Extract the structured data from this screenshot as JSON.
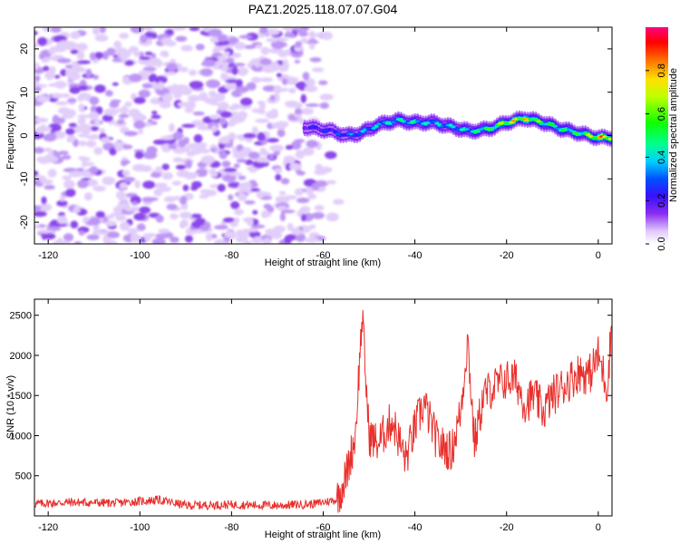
{
  "title": "PAZ1.2025.118.07.07.G04",
  "colors": {
    "snr_line": "#e8302c",
    "axis": "#000000"
  },
  "chart_data": [
    {
      "type": "heatmap",
      "xlabel": "Height of straight line (km)",
      "ylabel": "Frequency (Hz)",
      "xlim": [
        -123,
        3
      ],
      "ylim": [
        -25,
        25
      ],
      "xticks": [
        -120,
        -100,
        -80,
        -60,
        -40,
        -20,
        0
      ],
      "yticks": [
        -20,
        -10,
        0,
        10,
        20
      ],
      "colorbar": {
        "label": "Normalized spectral amplitude",
        "range": [
          0,
          1
        ],
        "ticks": [
          0.0,
          0.2,
          0.4,
          0.6,
          0.8
        ],
        "colormap": "rainbow"
      },
      "noise_region": {
        "x": [
          -123,
          -56
        ],
        "y": [
          -25,
          25
        ],
        "amplitude": 0.1
      },
      "signal_track": {
        "x": [
          -64,
          -58,
          -55,
          -52,
          -48,
          -44,
          -40,
          -36,
          -32,
          -28,
          -24,
          -20,
          -16,
          -12,
          -8,
          -4,
          0,
          3
        ],
        "frequency": [
          2,
          1,
          0,
          0.5,
          2.5,
          3.5,
          3,
          3,
          2,
          1,
          1.5,
          3,
          4,
          3,
          1.5,
          0.5,
          -0.5,
          -0.5
        ],
        "amplitude": [
          0.25,
          0.3,
          0.35,
          0.4,
          0.45,
          0.5,
          0.5,
          0.45,
          0.45,
          0.5,
          0.6,
          0.8,
          0.85,
          0.6,
          0.55,
          0.6,
          0.9,
          0.95
        ]
      }
    },
    {
      "type": "line",
      "xlabel": "Height of straight line (km)",
      "ylabel": "SNR (10 * v/v)",
      "xlim": [
        -123,
        3
      ],
      "ylim": [
        0,
        2700
      ],
      "xticks": [
        -120,
        -100,
        -80,
        -60,
        -40,
        -20,
        0
      ],
      "yticks": [
        500,
        1000,
        1500,
        2000,
        2500
      ],
      "series": [
        {
          "x": [
            -123,
            -115,
            -105,
            -96,
            -90,
            -80,
            -70,
            -62,
            -57,
            -55,
            -53,
            -51.5,
            -50,
            -48,
            -45,
            -42,
            -40,
            -38,
            -35,
            -32,
            -30,
            -28.5,
            -27,
            -25,
            -23,
            -20,
            -18,
            -16,
            -14,
            -12,
            -10,
            -8,
            -6,
            -4,
            -2,
            0,
            2,
            3
          ],
          "y": [
            150,
            170,
            160,
            200,
            130,
            140,
            130,
            150,
            200,
            500,
            1000,
            2500,
            1000,
            900,
            1200,
            700,
            1100,
            1400,
            900,
            800,
            1300,
            2200,
            900,
            1500,
            1600,
            1700,
            1700,
            1400,
            1500,
            1300,
            1500,
            1600,
            1700,
            1800,
            1750,
            2000,
            1600,
            2500
          ]
        }
      ]
    }
  ]
}
